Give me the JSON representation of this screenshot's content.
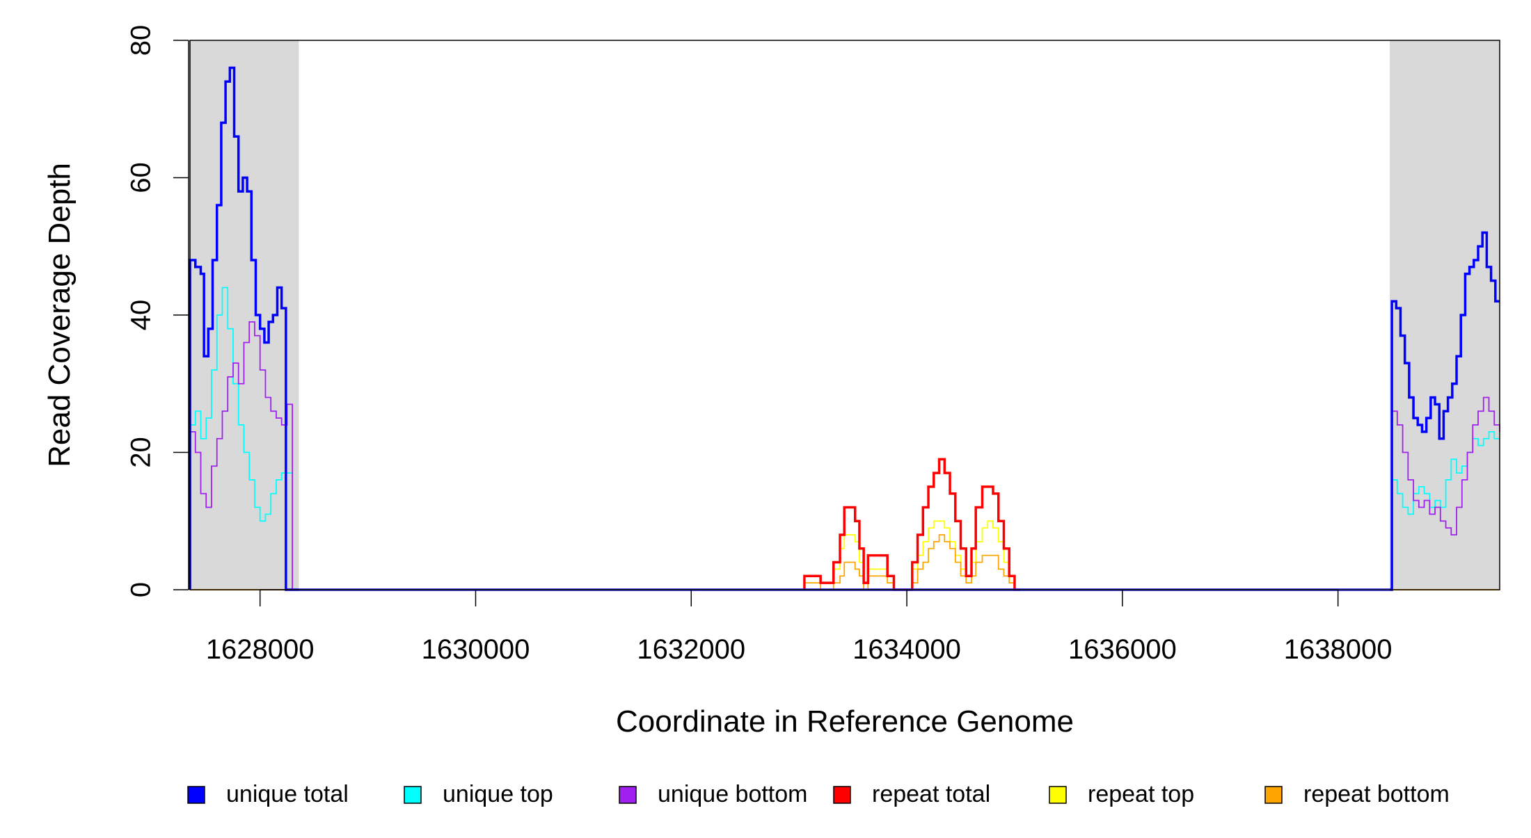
{
  "chart_data": {
    "type": "line",
    "xlabel": "Coordinate in Reference Genome",
    "ylabel": "Read Coverage Depth",
    "xlim": [
      1627350,
      1639500
    ],
    "ylim": [
      0,
      80
    ],
    "x_ticks": [
      1628000,
      1630000,
      1632000,
      1634000,
      1636000,
      1638000
    ],
    "x_tick_labels": [
      "1628000",
      "1630000",
      "1632000",
      "1634000",
      "1636000",
      "1638000"
    ],
    "y_ticks": [
      0,
      20,
      40,
      60,
      80
    ],
    "y_tick_labels": [
      "0",
      "20",
      "40",
      "60",
      "80"
    ],
    "shaded_regions": [
      [
        1627350,
        1628360
      ],
      [
        1638480,
        1639500
      ]
    ],
    "legend": [
      {
        "label": "unique total",
        "color": "#0000FF"
      },
      {
        "label": "unique top",
        "color": "#00FFFF"
      },
      {
        "label": "unique bottom",
        "color": "#A020F0"
      },
      {
        "label": "repeat total",
        "color": "#FF0000"
      },
      {
        "label": "repeat top",
        "color": "#FFFF00"
      },
      {
        "label": "repeat bottom",
        "color": "#FFA500"
      }
    ],
    "series": [
      {
        "name": "unique total",
        "color": "#0000FF",
        "x": [
          1627350,
          1627400,
          1627450,
          1627480,
          1627520,
          1627560,
          1627600,
          1627640,
          1627680,
          1627720,
          1627760,
          1627800,
          1627840,
          1627880,
          1627920,
          1627960,
          1628000,
          1628040,
          1628080,
          1628120,
          1628160,
          1628200,
          1628240,
          1628280,
          1628320,
          1628360,
          1628380,
          1638480,
          1638500,
          1638540,
          1638580,
          1638620,
          1638660,
          1638700,
          1638740,
          1638780,
          1638820,
          1638860,
          1638900,
          1638940,
          1638980,
          1639020,
          1639060,
          1639100,
          1639140,
          1639180,
          1639220,
          1639260,
          1639300,
          1639340,
          1639380,
          1639420,
          1639460,
          1639500
        ],
        "y": [
          48,
          47,
          46,
          34,
          38,
          48,
          56,
          68,
          74,
          76,
          66,
          58,
          60,
          58,
          48,
          40,
          38,
          36,
          39,
          40,
          44,
          41,
          0,
          0,
          0,
          0,
          0,
          0,
          42,
          41,
          37,
          33,
          28,
          25,
          24,
          23,
          25,
          28,
          27,
          22,
          26,
          28,
          30,
          34,
          40,
          46,
          47,
          48,
          50,
          52,
          47,
          45,
          42,
          42
        ]
      },
      {
        "name": "unique top",
        "color": "#00FFFF",
        "x": [
          1627350,
          1627400,
          1627450,
          1627500,
          1627550,
          1627600,
          1627650,
          1627700,
          1627750,
          1627800,
          1627850,
          1627900,
          1627950,
          1628000,
          1628050,
          1628100,
          1628150,
          1628200,
          1628250,
          1628300,
          1628360,
          1628380,
          1638480,
          1638500,
          1638550,
          1638600,
          1638650,
          1638700,
          1638750,
          1638800,
          1638850,
          1638900,
          1638950,
          1639000,
          1639050,
          1639100,
          1639150,
          1639200,
          1639250,
          1639300,
          1639350,
          1639400,
          1639450,
          1639500
        ],
        "y": [
          24,
          26,
          22,
          25,
          32,
          40,
          44,
          38,
          30,
          24,
          20,
          16,
          12,
          10,
          11,
          14,
          16,
          17,
          17,
          0,
          0,
          0,
          0,
          16,
          14,
          12,
          11,
          14,
          15,
          14,
          12,
          13,
          12,
          16,
          19,
          17,
          18,
          20,
          22,
          21,
          22,
          23,
          22,
          22
        ]
      },
      {
        "name": "unique bottom",
        "color": "#A020F0",
        "x": [
          1627350,
          1627400,
          1627450,
          1627500,
          1627550,
          1627600,
          1627650,
          1627700,
          1627750,
          1627800,
          1627850,
          1627900,
          1627950,
          1628000,
          1628050,
          1628100,
          1628150,
          1628200,
          1628250,
          1628300,
          1628360,
          1628380,
          1638480,
          1638500,
          1638550,
          1638600,
          1638650,
          1638700,
          1638750,
          1638800,
          1638850,
          1638900,
          1638950,
          1639000,
          1639050,
          1639100,
          1639150,
          1639200,
          1639250,
          1639300,
          1639350,
          1639400,
          1639450,
          1639500
        ],
        "y": [
          23,
          20,
          14,
          12,
          18,
          22,
          26,
          31,
          33,
          30,
          36,
          39,
          37,
          32,
          28,
          26,
          25,
          24,
          27,
          0,
          0,
          0,
          0,
          26,
          24,
          20,
          16,
          13,
          12,
          13,
          11,
          12,
          10,
          9,
          8,
          12,
          16,
          20,
          24,
          26,
          28,
          26,
          24,
          23
        ]
      },
      {
        "name": "repeat total",
        "color": "#FF0000",
        "x": [
          1633050,
          1633100,
          1633200,
          1633260,
          1633320,
          1633380,
          1633420,
          1633460,
          1633520,
          1633560,
          1633600,
          1633640,
          1633700,
          1633760,
          1633820,
          1633880,
          1633920,
          1634050,
          1634100,
          1634150,
          1634200,
          1634250,
          1634300,
          1634350,
          1634400,
          1634450,
          1634500,
          1634550,
          1634600,
          1634640,
          1634700,
          1634750,
          1634800,
          1634850,
          1634900,
          1634950,
          1635000,
          1635050
        ],
        "y": [
          2,
          2,
          1,
          1,
          4,
          8,
          12,
          12,
          10,
          6,
          1,
          5,
          5,
          5,
          2,
          0,
          0,
          4,
          8,
          12,
          15,
          17,
          19,
          17,
          14,
          10,
          6,
          2,
          6,
          12,
          15,
          15,
          14,
          10,
          6,
          2,
          0,
          0
        ]
      },
      {
        "name": "repeat top",
        "color": "#FFFF00",
        "x": [
          1633050,
          1633100,
          1633200,
          1633260,
          1633320,
          1633380,
          1633420,
          1633460,
          1633520,
          1633560,
          1633600,
          1633640,
          1633700,
          1633760,
          1633820,
          1633880,
          1633920,
          1634050,
          1634100,
          1634150,
          1634200,
          1634250,
          1634300,
          1634350,
          1634400,
          1634450,
          1634500,
          1634550,
          1634600,
          1634640,
          1634700,
          1634750,
          1634800,
          1634850,
          1634900,
          1634950,
          1635000,
          1635050
        ],
        "y": [
          1,
          1,
          1,
          1,
          3,
          6,
          8,
          8,
          7,
          4,
          1,
          3,
          3,
          3,
          1,
          0,
          0,
          3,
          5,
          7,
          9,
          10,
          10,
          9,
          7,
          5,
          3,
          1,
          4,
          7,
          9,
          10,
          9,
          7,
          4,
          1,
          0,
          0
        ]
      },
      {
        "name": "repeat bottom",
        "color": "#FFA500",
        "x": [
          1633050,
          1633100,
          1633200,
          1633260,
          1633320,
          1633380,
          1633420,
          1633460,
          1633520,
          1633560,
          1633600,
          1633640,
          1633700,
          1633760,
          1633820,
          1633880,
          1633920,
          1634050,
          1634100,
          1634150,
          1634200,
          1634250,
          1634300,
          1634350,
          1634400,
          1634450,
          1634500,
          1634550,
          1634600,
          1634640,
          1634700,
          1634750,
          1634800,
          1634850,
          1634900,
          1634950,
          1635000,
          1635050
        ],
        "y": [
          1,
          1,
          0,
          0,
          1,
          2,
          4,
          4,
          3,
          2,
          0,
          2,
          2,
          2,
          1,
          0,
          0,
          1,
          3,
          4,
          6,
          7,
          8,
          7,
          6,
          4,
          2,
          1,
          2,
          4,
          5,
          5,
          5,
          3,
          2,
          1,
          0,
          0
        ]
      }
    ]
  }
}
